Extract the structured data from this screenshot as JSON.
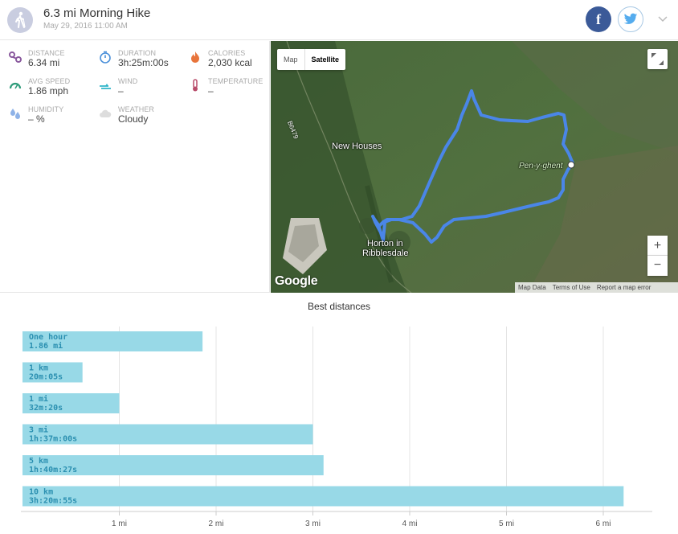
{
  "header": {
    "title": "6.3 mi Morning Hike",
    "subtitle": "May 29, 2016 11:00 AM",
    "facebook_label": "f"
  },
  "stats": {
    "distance": {
      "label": "DISTANCE",
      "value": "6.34 mi",
      "icon": "route-icon",
      "color": "#8a5a9e"
    },
    "duration": {
      "label": "DURATION",
      "value": "3h:25m:00s",
      "icon": "stopwatch-icon",
      "color": "#4a90d9"
    },
    "calories": {
      "label": "CALORIES",
      "value": "2,030 kcal",
      "icon": "flame-icon",
      "color": "#e8743b"
    },
    "avg_speed": {
      "label": "AVG SPEED",
      "value": "1.86 mph",
      "icon": "speedometer-icon",
      "color": "#2e9c7a"
    },
    "wind": {
      "label": "WIND",
      "value": "–",
      "icon": "wind-icon",
      "color": "#31b6c9"
    },
    "temperature": {
      "label": "TEMPERATURE",
      "value": "–",
      "icon": "thermometer-icon",
      "color": "#b84c6a"
    },
    "humidity": {
      "label": "HUMIDITY",
      "value": "– %",
      "icon": "droplets-icon",
      "color": "#8fb3e8"
    },
    "weather": {
      "label": "WEATHER",
      "value": "Cloudy",
      "icon": "cloud-icon",
      "color": "#dddddd"
    }
  },
  "map": {
    "toggle_map": "Map",
    "toggle_satellite": "Satellite",
    "zoom_in": "+",
    "zoom_out": "−",
    "logo": "Google",
    "footer": [
      "Map Data",
      "Terms of Use",
      "Report a map error"
    ],
    "places": [
      "New Houses",
      "Pen-y-ghent",
      "Horton in",
      "Ribblesdale"
    ],
    "road_label": "B6479",
    "route_color": "#4a86e8"
  },
  "chart_title": "Best distances",
  "chart_data": {
    "type": "bar",
    "orientation": "horizontal",
    "bar_color": "#98d9e7",
    "label_color": "#2a8fb0",
    "categories": [
      "One hour",
      "1 km",
      "1 mi",
      "3 mi",
      "5 km",
      "10 km"
    ],
    "times": [
      "1.86 mi",
      "20m:05s",
      "32m:20s",
      "1h:37m:00s",
      "1h:40m:27s",
      "3h:20m:55s"
    ],
    "values": [
      1.86,
      0.62,
      1.0,
      3.0,
      3.11,
      6.21
    ],
    "xlim": [
      0,
      6.4
    ],
    "ticks": [
      1,
      2,
      3,
      4,
      5,
      6
    ],
    "tick_labels": [
      "1 mi",
      "2 mi",
      "3 mi",
      "4 mi",
      "5 mi",
      "6 mi"
    ],
    "grid": true
  }
}
